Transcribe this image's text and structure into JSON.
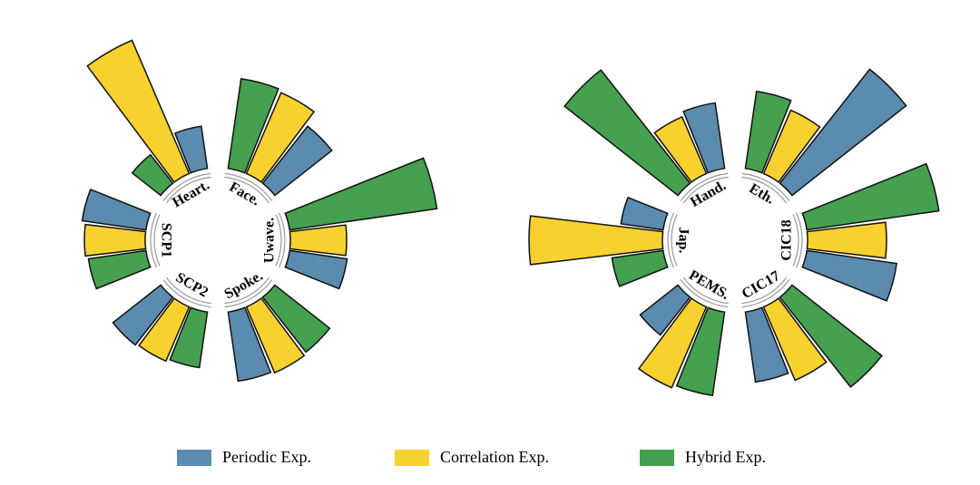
{
  "chart_data": [
    {
      "type": "radial_bar",
      "categories": [
        "Heart.",
        "Face.",
        "Uwave.",
        "Spoke.",
        "SCP2",
        "SCP1"
      ],
      "series": [
        {
          "name": "Periodic Exp.",
          "color": "#5b8bae",
          "values": [
            47,
            80,
            64,
            77,
            67,
            71
          ]
        },
        {
          "name": "Correlation Exp.",
          "color": "#f7d12e",
          "values": [
            160,
            97,
            62,
            79,
            65,
            67
          ]
        },
        {
          "name": "Hybrid Exp.",
          "color": "#45a04f",
          "values": [
            40,
            100,
            164,
            77,
            62,
            64
          ]
        }
      ]
    },
    {
      "type": "radial_bar",
      "categories": [
        "Hand.",
        "Eth.",
        "CIC18",
        "CIC17",
        "PEMS.",
        "Jap."
      ],
      "series": [
        {
          "name": "Periodic Exp.",
          "color": "#5b8bae",
          "values": [
            73,
            160,
            100,
            78,
            53,
            47
          ]
        },
        {
          "name": "Correlation Exp.",
          "color": "#f7d12e",
          "values": [
            68,
            76,
            87,
            88,
            97,
            147
          ]
        },
        {
          "name": "Hybrid Exp.",
          "color": "#45a04f",
          "values": [
            159,
            86,
            147,
            126,
            93,
            57
          ]
        }
      ]
    }
  ]
}
